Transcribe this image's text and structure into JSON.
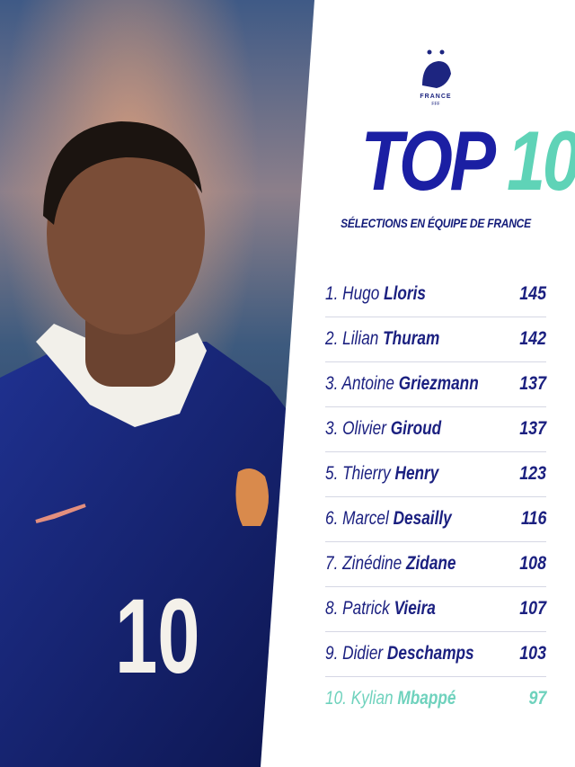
{
  "logo": {
    "text": "FRANCE",
    "subtext": "FFF"
  },
  "header": {
    "title": "TOP",
    "title_number": "10",
    "subtitle": "SÉLECTIONS EN ÉQUIPE DE FRANCE"
  },
  "photo": {
    "jersey_number": "10"
  },
  "table": {
    "rows": [
      {
        "rank": "1.",
        "first_name": "Hugo",
        "last_name": "Lloris",
        "caps": 145
      },
      {
        "rank": "2.",
        "first_name": "Lilian",
        "last_name": "Thuram",
        "caps": 142
      },
      {
        "rank": "3.",
        "first_name": "Antoine",
        "last_name": "Griezmann",
        "caps": 137
      },
      {
        "rank": "3.",
        "first_name": "Olivier",
        "last_name": "Giroud",
        "caps": 137
      },
      {
        "rank": "5.",
        "first_name": "Thierry",
        "last_name": "Henry",
        "caps": 123
      },
      {
        "rank": "6.",
        "first_name": "Marcel",
        "last_name": "Desailly",
        "caps": 116
      },
      {
        "rank": "7.",
        "first_name": "Zinédine",
        "last_name": "Zidane",
        "caps": 108
      },
      {
        "rank": "8.",
        "first_name": "Patrick",
        "last_name": "Vieira",
        "caps": 107
      },
      {
        "rank": "9.",
        "first_name": "Didier",
        "last_name": "Deschamps",
        "caps": 103
      },
      {
        "rank": "10.",
        "first_name": "Kylian",
        "last_name": "Mbappé",
        "caps": 97
      }
    ]
  }
}
